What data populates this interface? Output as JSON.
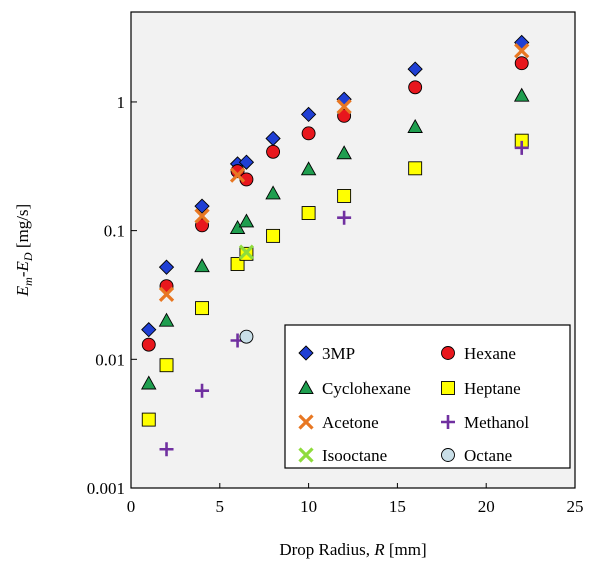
{
  "chart_data": {
    "type": "scatter",
    "title": "",
    "xlabel": {
      "prefix": "Drop Radius, ",
      "var": "R",
      "suffix": " [mm]"
    },
    "ylabel": {
      "E": "E",
      "m": "m",
      "dash": "-",
      "E2": "E",
      "D": "D",
      "unit": " [mg/s]"
    },
    "xlim": [
      0,
      25
    ],
    "ylim": [
      0.001,
      5
    ],
    "y_scale": "log",
    "x_ticks": [
      0,
      5,
      10,
      15,
      20,
      25
    ],
    "x_tick_labels": [
      "0",
      "5",
      "10",
      "15",
      "20",
      "25"
    ],
    "y_ticks": [
      0.001,
      0.01,
      0.1,
      1
    ],
    "y_tick_labels": [
      "0.001",
      "0.01",
      "0.1",
      "1"
    ],
    "grid": false,
    "plot_background": "#f2f2f2",
    "legend_position": "bottom-right",
    "series": [
      {
        "name": "3MP",
        "marker": "diamond",
        "color": "#1f3fd4",
        "x": [
          1,
          2,
          4,
          6,
          6.5,
          8,
          10,
          12,
          16,
          22
        ],
        "y": [
          0.017,
          0.052,
          0.155,
          0.33,
          0.34,
          0.52,
          0.8,
          1.05,
          1.8,
          2.9
        ]
      },
      {
        "name": "Hexane",
        "marker": "circle",
        "color": "#e8171d",
        "x": [
          1,
          2,
          4,
          6,
          6.5,
          8,
          10,
          12,
          16,
          22
        ],
        "y": [
          0.013,
          0.037,
          0.11,
          0.29,
          0.25,
          0.41,
          0.57,
          0.78,
          1.3,
          2.0
        ]
      },
      {
        "name": "Cyclohexane",
        "marker": "triangle",
        "color": "#1f9e4f",
        "x": [
          1,
          2,
          4,
          6,
          6.5,
          8,
          10,
          12,
          16,
          22
        ],
        "y": [
          0.0065,
          0.02,
          0.053,
          0.105,
          0.118,
          0.195,
          0.3,
          0.4,
          0.64,
          1.12
        ]
      },
      {
        "name": "Heptane",
        "marker": "square",
        "color": "#ffff00",
        "x": [
          1,
          2,
          4,
          6,
          6.5,
          8,
          10,
          12,
          16,
          22
        ],
        "y": [
          0.0034,
          0.009,
          0.025,
          0.055,
          0.066,
          0.091,
          0.137,
          0.186,
          0.305,
          0.5
        ]
      },
      {
        "name": "Acetone",
        "marker": "x",
        "color": "#e87722",
        "x": [
          2,
          4,
          6,
          12,
          22
        ],
        "y": [
          0.032,
          0.13,
          0.27,
          0.92,
          2.5
        ]
      },
      {
        "name": "Methanol",
        "marker": "plus",
        "color": "#7030a0",
        "x": [
          2,
          4,
          6,
          12,
          22
        ],
        "y": [
          0.002,
          0.0057,
          0.014,
          0.126,
          0.44
        ]
      },
      {
        "name": "Isooctane",
        "marker": "x",
        "color": "#8fdc3c",
        "x": [
          6.5
        ],
        "y": [
          0.068
        ]
      },
      {
        "name": "Octane",
        "marker": "circle",
        "color": "#c9dfe8",
        "x": [
          6.5
        ],
        "y": [
          0.015
        ]
      }
    ]
  }
}
